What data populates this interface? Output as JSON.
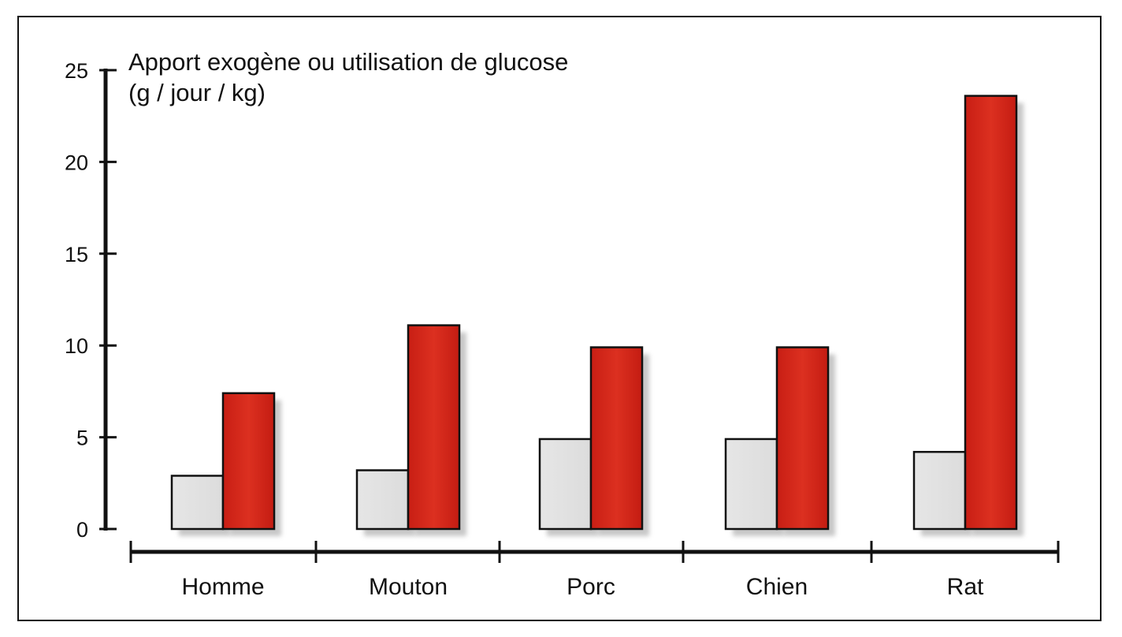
{
  "chart_data": {
    "type": "bar",
    "title": "",
    "ylabel_lines": [
      "Apport exogène ou utilisation de glucose",
      "(g / jour / kg)"
    ],
    "xlabel": "",
    "categories": [
      "Homme",
      "Mouton",
      "Porc",
      "Chien",
      "Rat"
    ],
    "series": [
      {
        "values": [
          2.9,
          3.2,
          4.9,
          4.9,
          4.2
        ]
      },
      {
        "values": [
          7.4,
          11.1,
          9.9,
          9.9,
          23.6
        ]
      }
    ],
    "series_colors": [
      "#e2e2e2",
      "#d42a1c"
    ],
    "yticks": [
      0,
      5,
      10,
      15,
      20,
      25
    ],
    "ylim": [
      0,
      25
    ],
    "grid": false,
    "legend": "none"
  }
}
